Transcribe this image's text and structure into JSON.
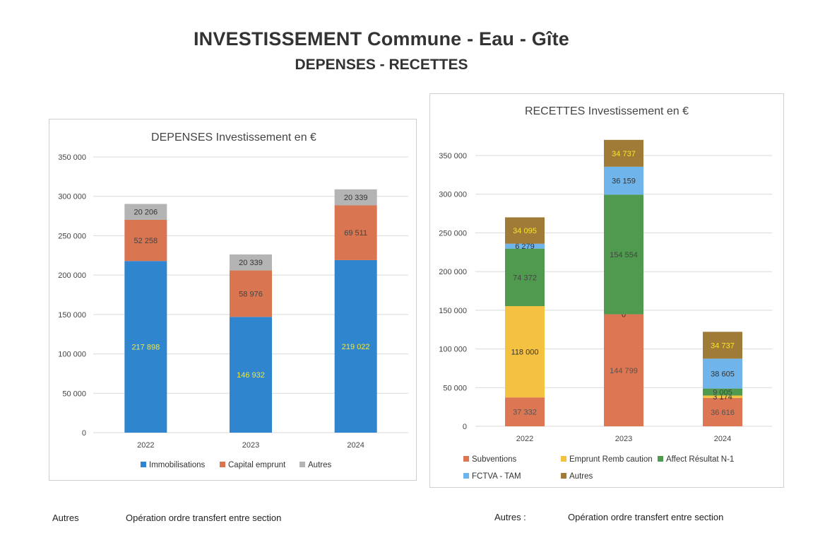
{
  "page": {
    "title": "INVESTISSEMENT Commune - Eau - Gîte",
    "subtitle": "DEPENSES - RECETTES"
  },
  "notes": {
    "left_key": "Autres",
    "left_value": "Opération ordre transfert entre section",
    "right_key": "Autres :",
    "right_value": "Opération ordre transfert entre section"
  },
  "chart_data": [
    {
      "type": "bar",
      "stacked": true,
      "title": "DEPENSES Investissement en €",
      "categories": [
        "2022",
        "2023",
        "2024"
      ],
      "ylim": [
        0,
        350000
      ],
      "yticks": [
        0,
        50000,
        100000,
        150000,
        200000,
        250000,
        300000,
        350000
      ],
      "ytick_labels": [
        "0",
        "50 000",
        "100 000",
        "150 000",
        "200 000",
        "250 000",
        "300 000",
        "350 000"
      ],
      "grid": true,
      "legend": "bottom",
      "series": [
        {
          "name": "Immobilisations",
          "color": "#2f86cf",
          "label_color": "#f5e637",
          "values": [
            217898,
            146932,
            219022
          ],
          "labels": [
            "217 898",
            "146 932",
            "219 022"
          ]
        },
        {
          "name": "Capital emprunt",
          "color": "#d97550",
          "label_color": "#444444",
          "values": [
            52258,
            58976,
            69511
          ],
          "labels": [
            "52 258",
            "58 976",
            "69 511"
          ]
        },
        {
          "name": "Autres",
          "color": "#b4b4b4",
          "label_color": "#333333",
          "values": [
            20206,
            20339,
            20339
          ],
          "labels": [
            "20 206",
            "20 339",
            "20 339"
          ]
        }
      ]
    },
    {
      "type": "bar",
      "stacked": true,
      "title": "RECETTES Investissement en €",
      "categories": [
        "2022",
        "2023",
        "2024"
      ],
      "ylim": [
        0,
        350000
      ],
      "yticks": [
        0,
        50000,
        100000,
        150000,
        200000,
        250000,
        300000,
        350000
      ],
      "ytick_labels": [
        "0",
        "50 000",
        "100 000",
        "150 000",
        "200 000",
        "250 000",
        "300 000",
        "350 000"
      ],
      "grid": true,
      "legend": "bottom",
      "series": [
        {
          "name": "Subventions",
          "color": "#dc7653",
          "label_color": "#555555",
          "values": [
            37332,
            144799,
            36616
          ],
          "labels": [
            "37 332",
            "144 799",
            "36 616"
          ]
        },
        {
          "name": "Emprunt Remb caution",
          "color": "#f5c141",
          "label_color": "#333333",
          "values": [
            118000,
            0,
            3174
          ],
          "labels": [
            "118 000",
            "0",
            "3 174"
          ]
        },
        {
          "name": "Affect Résultat N-1",
          "color": "#4f9a4e",
          "label_color": "#444444",
          "values": [
            74372,
            154554,
            9005
          ],
          "labels": [
            "74 372",
            "154 554",
            "9 005"
          ]
        },
        {
          "name": "FCTVA  - TAM",
          "color": "#6fb5ec",
          "label_color": "#333333",
          "values": [
            6279,
            36159,
            38605
          ],
          "labels": [
            "6 279",
            "36 159",
            "38 605"
          ]
        },
        {
          "name": "Autres",
          "color": "#a07a37",
          "label_color": "#f5e637",
          "values": [
            34095,
            34737,
            34737
          ],
          "labels": [
            "34 095",
            "34 737",
            "34 737"
          ]
        }
      ]
    }
  ]
}
